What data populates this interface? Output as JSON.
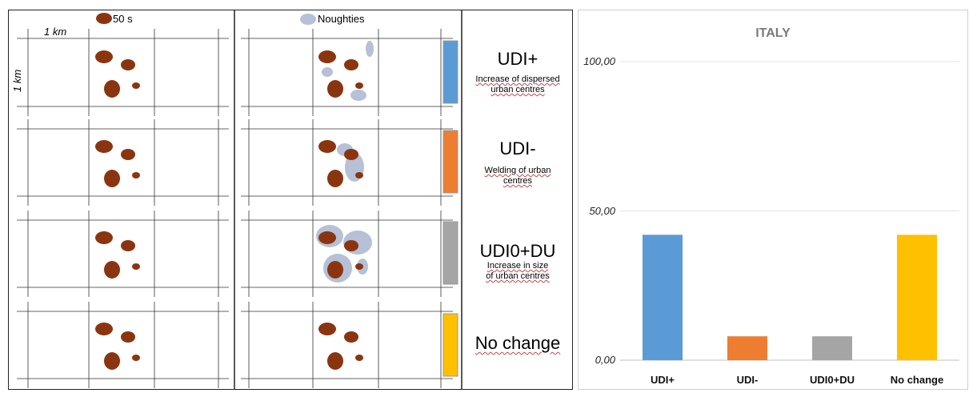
{
  "legend": {
    "fifties_label": "50 s",
    "noughties_label": "Noughties",
    "scale_x": "1 km",
    "scale_y": "1 km",
    "colors": {
      "fifties": "#8b3510",
      "noughties": "#b6c0d6"
    }
  },
  "categories": [
    {
      "title": "UDI+",
      "desc_line1": "Increase of dispersed",
      "desc_line2": "urban centres",
      "color": "#5b9bd5"
    },
    {
      "title": "UDI-",
      "desc_line1": "Welding of urban",
      "desc_line2": "centres",
      "color": "#ed7d31"
    },
    {
      "title": "UDI0+DU",
      "desc_line1": "Increase in size",
      "desc_line2": "of urban centres",
      "color": "#a5a5a5"
    },
    {
      "title": "No change",
      "desc_line1": "",
      "desc_line2": "",
      "color": "#ffc000"
    }
  ],
  "chart_data": {
    "type": "bar",
    "title": "ITALY",
    "categories": [
      "UDI+",
      "UDI-",
      "UDI0+DU",
      "No change"
    ],
    "values": [
      42,
      8,
      8,
      42
    ],
    "ylim": [
      0,
      100
    ],
    "yticks": [
      "0,00",
      "50,00",
      "100,00"
    ],
    "ytick_values": [
      0,
      50,
      100
    ],
    "colors": [
      "#5b9bd5",
      "#ed7d31",
      "#a5a5a5",
      "#ffc000"
    ],
    "grid": true
  }
}
